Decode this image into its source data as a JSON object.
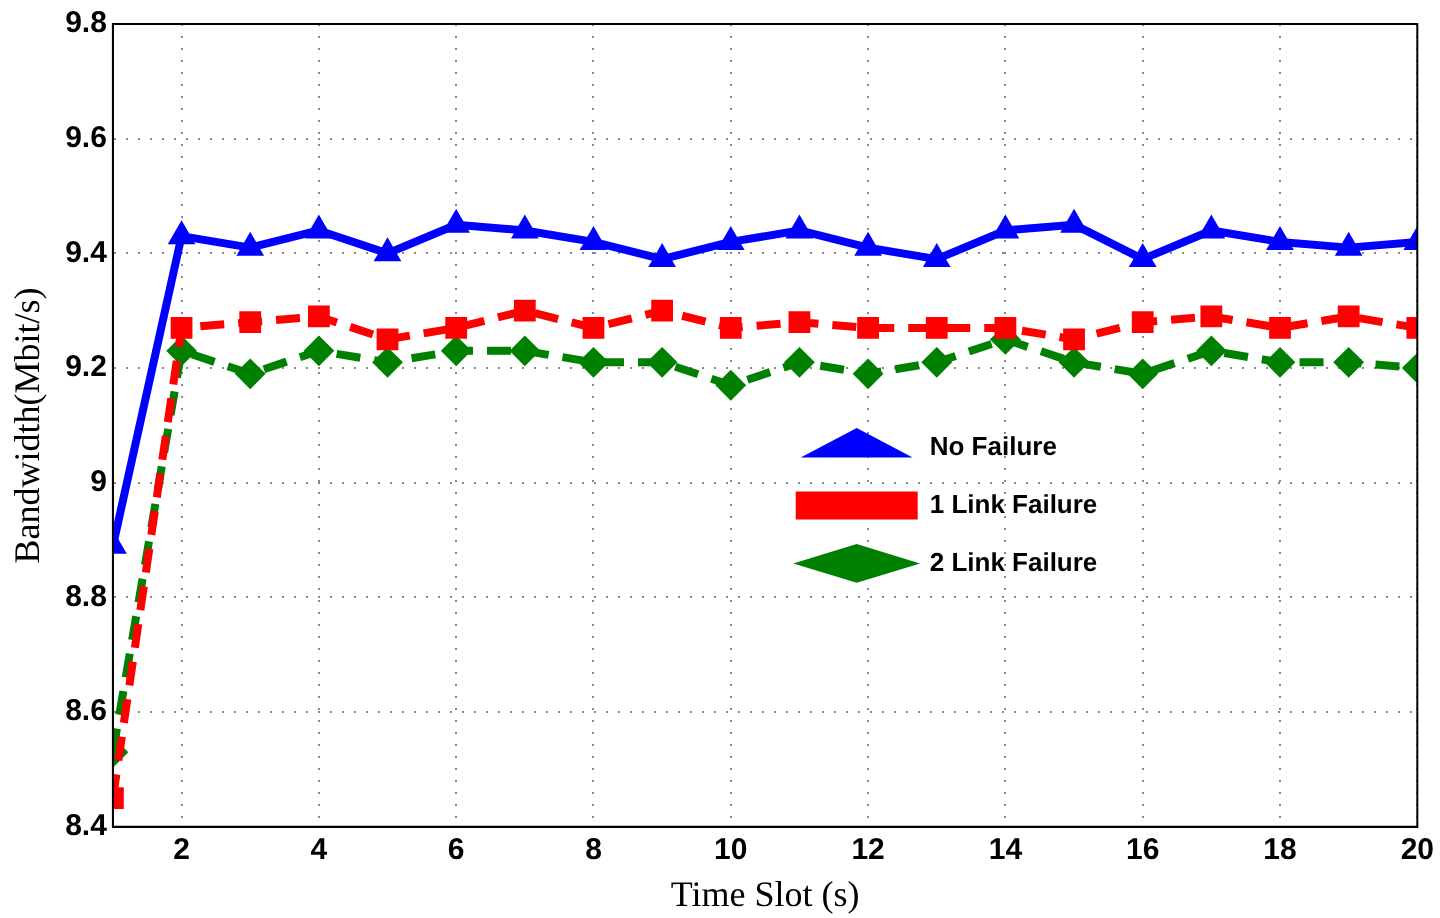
{
  "chart_data": {
    "type": "line",
    "xlabel": "Time Slot (s)",
    "ylabel": "Bandwidth(Mbit/s)",
    "x": [
      1,
      2,
      3,
      4,
      5,
      6,
      7,
      8,
      9,
      10,
      11,
      12,
      13,
      14,
      15,
      16,
      17,
      18,
      19,
      20
    ],
    "xlim": [
      1,
      20
    ],
    "xticks": [
      2,
      4,
      6,
      8,
      10,
      12,
      14,
      16,
      18,
      20
    ],
    "ylim": [
      8.4,
      9.8
    ],
    "yticks": [
      8.4,
      8.6,
      8.8,
      9,
      9.2,
      9.4,
      9.6,
      9.8
    ],
    "grid": true,
    "legend": "right",
    "series": [
      {
        "name": "No Failure",
        "color": "#0000ff",
        "marker": "triangle",
        "line_style": "solid",
        "values": [
          8.89,
          9.43,
          9.41,
          9.44,
          9.4,
          9.45,
          9.44,
          9.42,
          9.39,
          9.42,
          9.44,
          9.41,
          9.39,
          9.44,
          9.45,
          9.39,
          9.44,
          9.42,
          9.41,
          9.42
        ]
      },
      {
        "name": "1 Link Failure",
        "color": "#ff0000",
        "marker": "square",
        "line_style": "dashed",
        "values": [
          8.45,
          9.27,
          9.28,
          9.29,
          9.25,
          9.27,
          9.3,
          9.27,
          9.3,
          9.27,
          9.28,
          9.27,
          9.27,
          9.27,
          9.25,
          9.28,
          9.29,
          9.27,
          9.29,
          9.27
        ]
      },
      {
        "name": "2 Link Failure",
        "color": "#008000",
        "marker": "diamond",
        "line_style": "dashed",
        "values": [
          8.53,
          9.23,
          9.19,
          9.23,
          9.21,
          9.23,
          9.23,
          9.21,
          9.21,
          9.17,
          9.21,
          9.19,
          9.21,
          9.25,
          9.21,
          9.19,
          9.23,
          9.21,
          9.21,
          9.2
        ]
      }
    ]
  }
}
